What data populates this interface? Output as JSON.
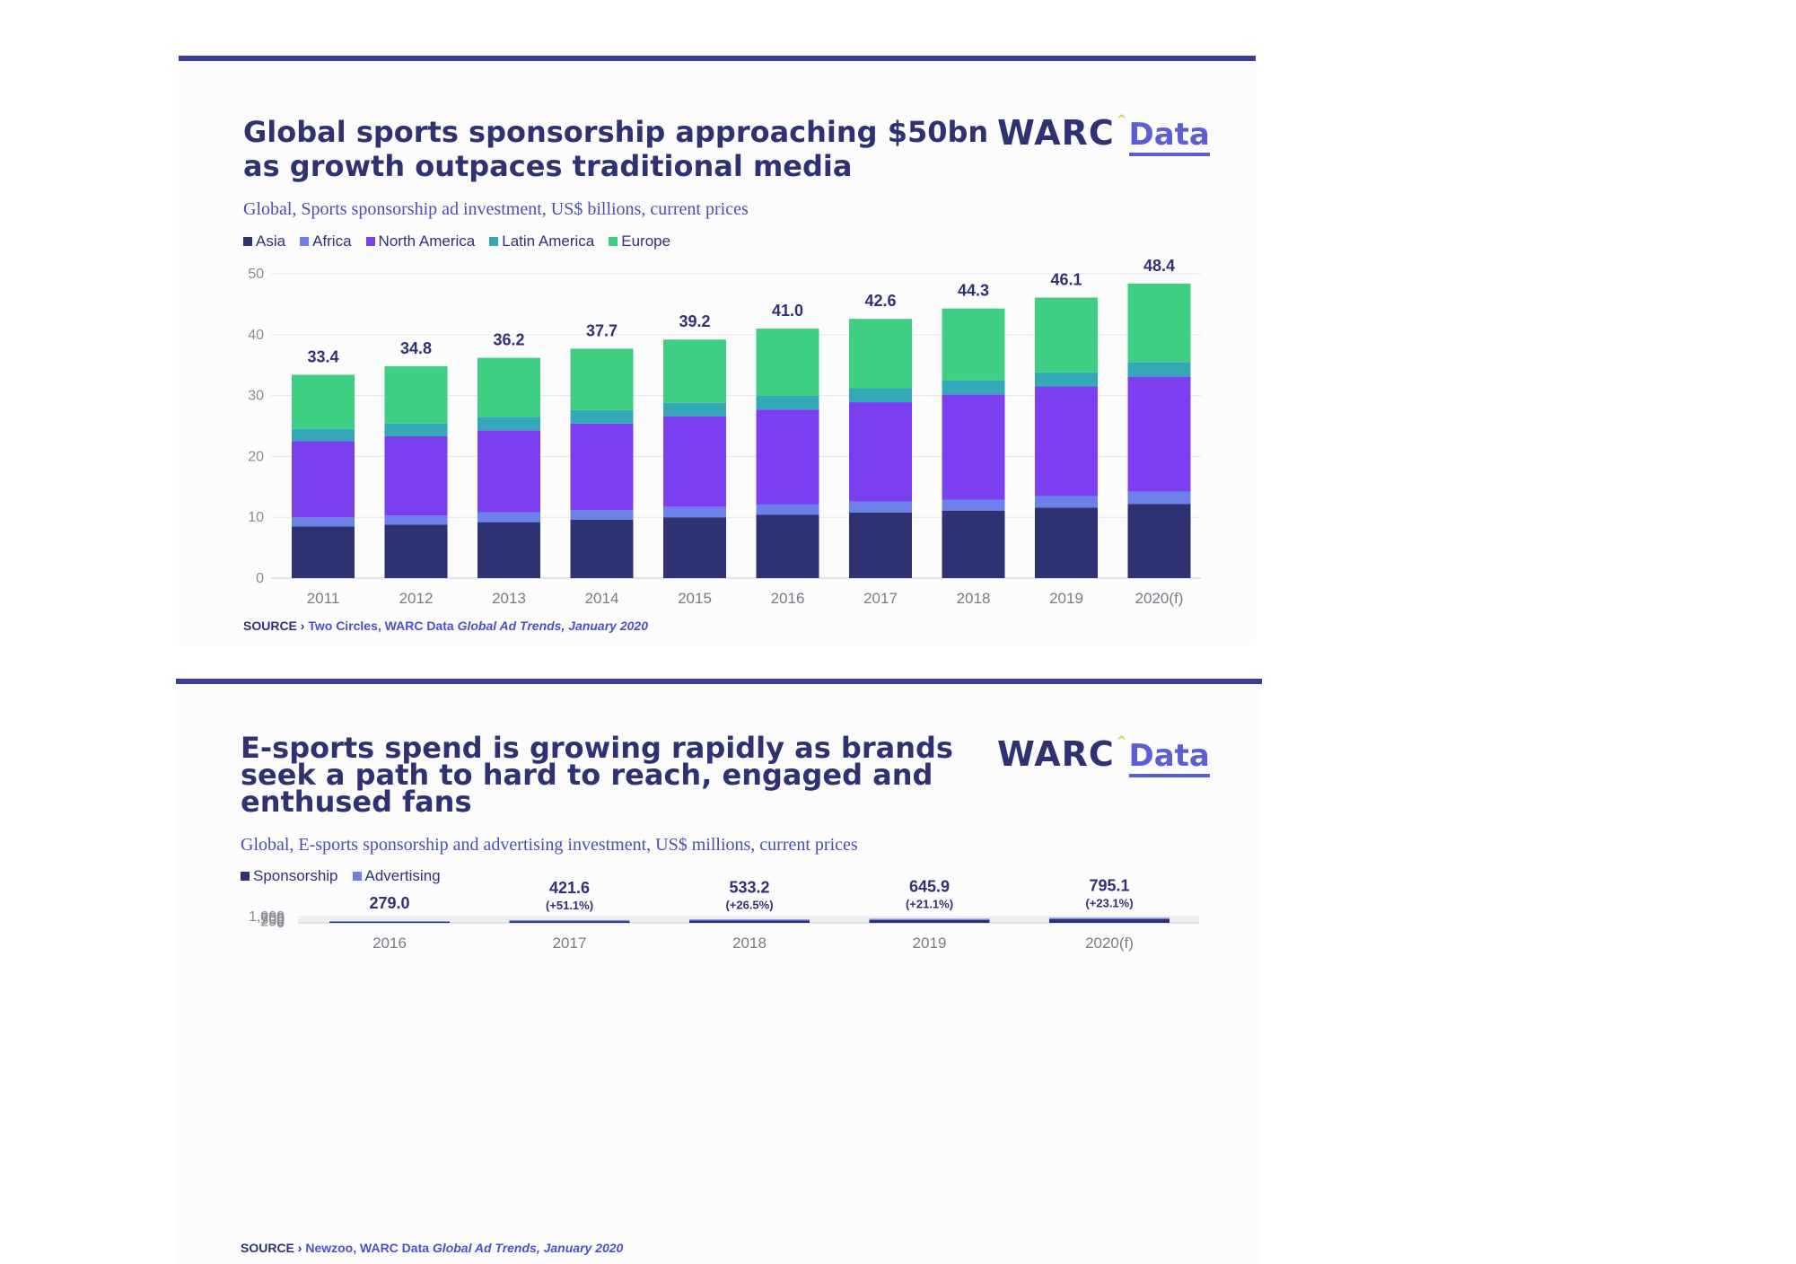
{
  "panel1": {
    "title": "Global sports sponsorship approaching $50bn as growth outpaces traditional media",
    "subtitle": "Global, Sports sponsorship ad investment, US$ billions, current prices",
    "brand": {
      "warc": "WARC",
      "caret": "^",
      "data": "Data"
    },
    "source": {
      "label": "SOURCE ›",
      "body": "Two Circles, WARC Data",
      "publication": "Global Ad Trends, January 2020"
    }
  },
  "panel2": {
    "title": "E-sports spend is growing rapidly as brands seek a path to hard to reach, engaged and enthused fans",
    "subtitle": "Global, E-sports sponsorship and advertising investment, US$ millions, current prices",
    "brand": {
      "warc": "WARC",
      "caret": "^",
      "data": "Data"
    },
    "source": {
      "label": "SOURCE ›",
      "body": "Newzoo, WARC Data",
      "publication": "Global Ad Trends, January 2020"
    }
  },
  "chart_data": [
    {
      "type": "bar",
      "stacked": true,
      "title": "Global sports sponsorship approaching $50bn as growth outpaces traditional media",
      "subtitle": "Global, Sports sponsorship ad investment, US$ billions, current prices",
      "categories": [
        "2011",
        "2012",
        "2013",
        "2014",
        "2015",
        "2016",
        "2017",
        "2018",
        "2019",
        "2020(f)"
      ],
      "ylim": [
        0,
        50
      ],
      "yticks": [
        {
          "value": 0,
          "label": "0"
        },
        {
          "value": 10,
          "label": "10"
        },
        {
          "value": 20,
          "label": "20"
        },
        {
          "value": 30,
          "label": "30"
        },
        {
          "value": 40,
          "label": "40"
        },
        {
          "value": 50,
          "label": "50"
        }
      ],
      "grid": true,
      "legend": "top-left",
      "series": [
        {
          "name": "Asia",
          "color": "#2e3272",
          "values": [
            8.5,
            8.8,
            9.2,
            9.6,
            10.0,
            10.4,
            10.8,
            11.1,
            11.6,
            12.2
          ]
        },
        {
          "name": "Africa",
          "color": "#6b80e8",
          "values": [
            1.5,
            1.5,
            1.6,
            1.6,
            1.7,
            1.7,
            1.8,
            1.8,
            1.9,
            2.0
          ]
        },
        {
          "name": "North America",
          "color": "#7b3ff0",
          "values": [
            12.5,
            13.0,
            13.5,
            14.2,
            14.9,
            15.6,
            16.3,
            17.3,
            18.0,
            18.9
          ]
        },
        {
          "name": "Latin America",
          "color": "#35a8b8",
          "values": [
            2.0,
            2.1,
            2.2,
            2.2,
            2.2,
            2.3,
            2.3,
            2.3,
            2.3,
            2.4
          ]
        },
        {
          "name": "Europe",
          "color": "#3ecf82",
          "values": [
            8.9,
            9.4,
            9.7,
            10.1,
            10.4,
            11.0,
            11.4,
            11.8,
            12.3,
            12.9
          ]
        }
      ],
      "totals": [
        "33.4",
        "34.8",
        "36.2",
        "37.7",
        "39.2",
        "41.0",
        "42.6",
        "44.3",
        "46.1",
        "48.4"
      ],
      "source": "SOURCE › Two Circles, WARC Data Global Ad Trends, January 2020"
    },
    {
      "type": "bar",
      "stacked": true,
      "title": "E-sports spend is growing rapidly as brands seek a path to hard to reach, engaged and enthused fans",
      "subtitle": "Global, E-sports sponsorship and advertising investment, US$ millions, current prices",
      "categories": [
        "2016",
        "2017",
        "2018",
        "2019",
        "2020(f)"
      ],
      "ylim": [
        0,
        1000
      ],
      "yticks": [
        {
          "value": 0,
          "label": "0"
        },
        {
          "value": 250,
          "label": "250"
        },
        {
          "value": 500,
          "label": "500"
        },
        {
          "value": 750,
          "label": "750"
        },
        {
          "value": 1000,
          "label": "1,000"
        }
      ],
      "grid": true,
      "legend": "top-left",
      "series": [
        {
          "name": "Sponsorship",
          "color": "#2e3272",
          "values": [
            155.0,
            265.0,
            355.0,
            455.0,
            580.0
          ]
        },
        {
          "name": "Advertising",
          "color": "#6b80e8",
          "values": [
            124.0,
            156.6,
            178.2,
            190.9,
            215.1
          ]
        }
      ],
      "totals": [
        "279.0",
        "421.6",
        "533.2",
        "645.9",
        "795.1"
      ],
      "growth": [
        "",
        "(+51.1%)",
        "(+26.5%)",
        "(+21.1%)",
        "(+23.1%)"
      ],
      "source": "SOURCE › Newzoo, WARC Data Global Ad Trends, January 2020"
    }
  ]
}
